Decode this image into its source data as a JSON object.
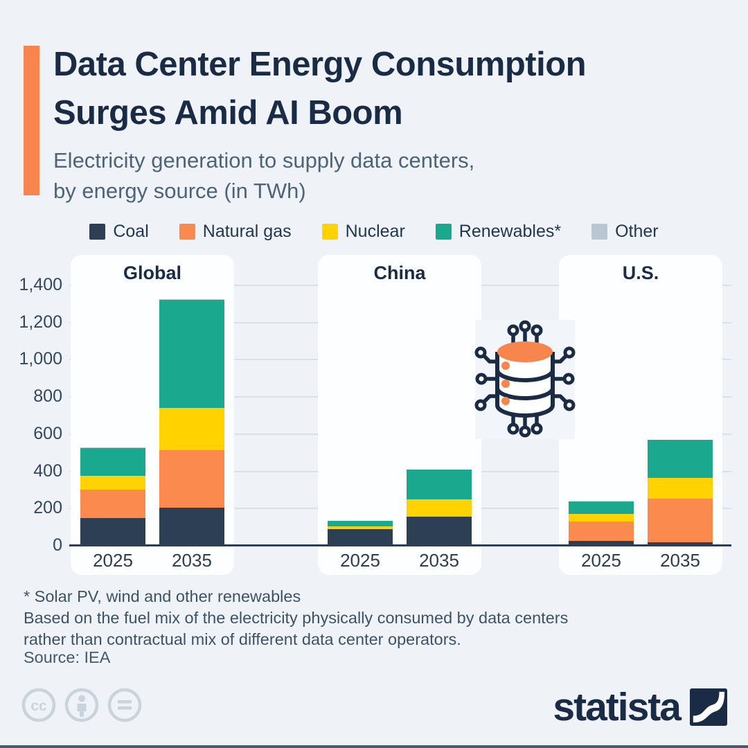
{
  "header": {
    "title_line1": "Data Center Energy Consumption",
    "title_line2": "Surges Amid AI Boom",
    "subtitle_line1": "Electricity generation to supply data centers,",
    "subtitle_line2": "by energy source (in TWh)"
  },
  "legend": {
    "items": [
      {
        "label": "Coal",
        "color": "#2D3F55"
      },
      {
        "label": "Natural gas",
        "color": "#FA8A4D"
      },
      {
        "label": "Nuclear",
        "color": "#FFD200"
      },
      {
        "label": "Renewables*",
        "color": "#1AA88F"
      },
      {
        "label": "Other",
        "color": "#B9C7D2"
      }
    ]
  },
  "chart_data": {
    "type": "bar",
    "stacked": true,
    "unit": "TWh",
    "title": "Electricity generation to supply data centers, by energy source (in TWh)",
    "groups": [
      "Global",
      "China",
      "U.S."
    ],
    "categories": [
      "2025",
      "2035"
    ],
    "series": [
      {
        "name": "Coal",
        "color": "#2D3F55",
        "values": [
          [
            150,
            205
          ],
          [
            90,
            155
          ],
          [
            25,
            20
          ]
        ]
      },
      {
        "name": "Natural gas",
        "color": "#FA8A4D",
        "values": [
          [
            150,
            310
          ],
          [
            0,
            0
          ],
          [
            105,
            235
          ]
        ]
      },
      {
        "name": "Nuclear",
        "color": "#FFD200",
        "values": [
          [
            75,
            225
          ],
          [
            15,
            95
          ],
          [
            40,
            110
          ]
        ]
      },
      {
        "name": "Renewables*",
        "color": "#1AA88F",
        "values": [
          [
            150,
            580
          ],
          [
            30,
            160
          ],
          [
            70,
            205
          ]
        ]
      },
      {
        "name": "Other",
        "color": "#B9C7D2",
        "values": [
          [
            5,
            5
          ],
          [
            0,
            0
          ],
          [
            0,
            0
          ]
        ]
      }
    ],
    "totals": {
      "Global": [
        530,
        1325
      ],
      "China": [
        135,
        410
      ],
      "U.S.": [
        240,
        570
      ]
    },
    "ylim": [
      0,
      1400
    ],
    "ytick_step": 200,
    "yticks": [
      "0",
      "200",
      "400",
      "600",
      "800",
      "1,000",
      "1,200",
      "1,400"
    ],
    "grid": true,
    "legend_position": "top"
  },
  "footnotes": {
    "line1": "* Solar PV, wind and other renewables",
    "line2": "Based on the fuel mix of the electricity physically consumed by data centers",
    "line3": "rather than contractual mix of different data center operators."
  },
  "source": {
    "label": "Source: IEA"
  },
  "branding": {
    "wordmark": "statista"
  },
  "license_icons": [
    "cc-icon",
    "attribution-icon",
    "no-derivatives-icon"
  ],
  "colors": {
    "background": "#EFF3F8",
    "panel": "#FDFEFF",
    "title": "#1A2B45",
    "subtitle": "#4D6378",
    "grid": "#D9E0E7",
    "axis": "#2C3E55",
    "accent": "#F8854E"
  }
}
